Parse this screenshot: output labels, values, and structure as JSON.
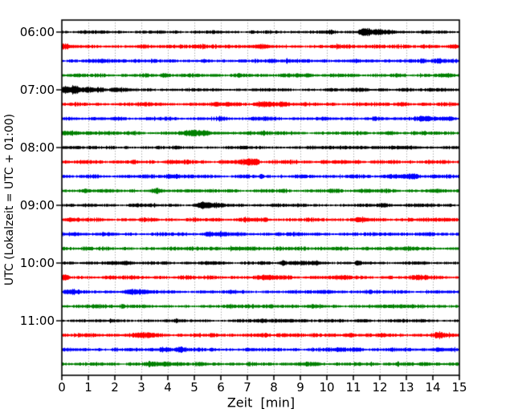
{
  "chart_data": {
    "type": "line",
    "subtype": "helicorder-seismogram-dayplot",
    "title": "",
    "xlabel": "Zeit  [min]",
    "ylabel": "UTC (Lokalzeit = UTC + 01:00)",
    "xlim": [
      0,
      15
    ],
    "x_ticks": [
      0,
      1,
      2,
      3,
      4,
      5,
      6,
      7,
      8,
      9,
      10,
      11,
      12,
      13,
      14,
      15
    ],
    "y_tick_labels": [
      "06:00",
      "07:00",
      "08:00",
      "09:00",
      "10:00",
      "11:00"
    ],
    "traces_per_hour": 4,
    "minutes_per_trace": 15,
    "grid": {
      "vertical_dotted": true,
      "horizontal": false,
      "color": "#8c8c8c"
    },
    "colors_cycle": [
      "#000000",
      "#ff0000",
      "#0000ff",
      "#008000"
    ],
    "axis_color": "#000000",
    "background": "#ffffff",
    "events_format": "[minute_x, gauss_width_min, extra_halfheight_px]",
    "traces": [
      {
        "start": "06:00",
        "color": "#000000",
        "base": 1.55,
        "events": [
          [
            0.9,
            0.25,
            1.0
          ],
          [
            10.1,
            0.3,
            1.0
          ],
          [
            11.35,
            0.18,
            3.2
          ],
          [
            11.55,
            0.12,
            2.2
          ],
          [
            11.9,
            0.25,
            2.6
          ],
          [
            12.4,
            0.3,
            1.2
          ]
        ]
      },
      {
        "start": "06:15",
        "color": "#ff0000",
        "base": 1.85,
        "events": [
          [
            0.15,
            0.2,
            1.4
          ],
          [
            3.0,
            0.3,
            0.8
          ],
          [
            7.6,
            0.45,
            1.3
          ],
          [
            10.3,
            0.4,
            0.8
          ],
          [
            14.75,
            0.2,
            1.4
          ]
        ]
      },
      {
        "start": "06:30",
        "color": "#0000ff",
        "base": 1.75,
        "events": [
          [
            1.4,
            0.3,
            0.9
          ],
          [
            5.4,
            0.3,
            0.8
          ],
          [
            11.2,
            0.5,
            0.8
          ],
          [
            14.3,
            0.3,
            0.9
          ]
        ]
      },
      {
        "start": "06:45",
        "color": "#008000",
        "base": 1.75,
        "events": [
          [
            0.4,
            0.3,
            0.8
          ],
          [
            3.85,
            0.12,
            1.8
          ],
          [
            9.2,
            0.5,
            0.8
          ],
          [
            14.5,
            0.3,
            1.0
          ]
        ]
      },
      {
        "start": "07:00",
        "color": "#000000",
        "base": 1.55,
        "events": [
          [
            0.12,
            0.15,
            4.2
          ],
          [
            0.5,
            0.2,
            3.8
          ],
          [
            0.95,
            0.25,
            3.2
          ],
          [
            1.45,
            0.18,
            2.2
          ],
          [
            2.1,
            0.3,
            1.2
          ],
          [
            11.3,
            0.4,
            1.3
          ],
          [
            14.3,
            0.35,
            1.3
          ]
        ]
      },
      {
        "start": "07:15",
        "color": "#ff0000",
        "base": 1.85,
        "events": [
          [
            6.3,
            0.3,
            1.2
          ],
          [
            7.5,
            0.25,
            2.2
          ],
          [
            7.9,
            0.2,
            2.3
          ],
          [
            8.3,
            0.15,
            1.5
          ],
          [
            12.9,
            0.2,
            1.0
          ]
        ]
      },
      {
        "start": "07:30",
        "color": "#0000ff",
        "base": 1.75,
        "events": [
          [
            7.5,
            0.4,
            0.9
          ],
          [
            13.7,
            0.5,
            1.3
          ],
          [
            14.6,
            0.25,
            1.4
          ]
        ]
      },
      {
        "start": "07:45",
        "color": "#008000",
        "base": 1.75,
        "events": [
          [
            0.25,
            0.35,
            1.8
          ],
          [
            1.0,
            0.2,
            1.2
          ],
          [
            4.85,
            0.4,
            1.8
          ],
          [
            5.45,
            0.25,
            1.6
          ],
          [
            7.0,
            0.3,
            0.9
          ],
          [
            12.4,
            0.25,
            1.0
          ]
        ]
      },
      {
        "start": "08:00",
        "color": "#000000",
        "base": 1.55,
        "events": [
          [
            0.3,
            0.3,
            0.8
          ],
          [
            10.9,
            0.7,
            0.9
          ],
          [
            13.1,
            0.5,
            0.8
          ]
        ]
      },
      {
        "start": "08:15",
        "color": "#ff0000",
        "base": 1.85,
        "events": [
          [
            4.2,
            0.35,
            1.1
          ],
          [
            7.05,
            0.22,
            3.8
          ],
          [
            7.35,
            0.12,
            2.0
          ],
          [
            11.15,
            0.1,
            1.4
          ]
        ]
      },
      {
        "start": "08:30",
        "color": "#0000ff",
        "base": 1.75,
        "events": [
          [
            4.05,
            0.18,
            2.3
          ],
          [
            4.35,
            0.1,
            1.5
          ],
          [
            7.55,
            0.06,
            2.8
          ],
          [
            12.45,
            0.35,
            1.3
          ],
          [
            13.15,
            0.25,
            1.8
          ],
          [
            14.05,
            0.18,
            1.4
          ]
        ]
      },
      {
        "start": "08:45",
        "color": "#008000",
        "base": 1.75,
        "events": [
          [
            0.9,
            0.2,
            1.1
          ],
          [
            3.55,
            0.18,
            2.0
          ],
          [
            5.0,
            0.3,
            0.8
          ],
          [
            11.4,
            0.5,
            0.9
          ]
        ]
      },
      {
        "start": "09:00",
        "color": "#000000",
        "base": 1.55,
        "events": [
          [
            2.9,
            0.3,
            1.1
          ],
          [
            5.3,
            0.18,
            4.3
          ],
          [
            5.6,
            0.15,
            2.6
          ],
          [
            5.95,
            0.2,
            1.6
          ],
          [
            8.0,
            0.2,
            1.3
          ],
          [
            12.1,
            0.22,
            1.4
          ],
          [
            13.4,
            0.3,
            0.9
          ]
        ]
      },
      {
        "start": "09:15",
        "color": "#ff0000",
        "base": 1.85,
        "events": [
          [
            0.3,
            0.3,
            1.2
          ],
          [
            7.1,
            0.4,
            0.9
          ],
          [
            11.2,
            0.3,
            0.8
          ],
          [
            14.45,
            0.25,
            1.2
          ]
        ]
      },
      {
        "start": "09:30",
        "color": "#0000ff",
        "base": 1.75,
        "events": [
          [
            0.35,
            0.3,
            1.3
          ],
          [
            5.55,
            0.2,
            1.9
          ],
          [
            6.05,
            0.18,
            1.9
          ],
          [
            8.2,
            0.12,
            1.5
          ],
          [
            12.35,
            0.25,
            1.1
          ]
        ]
      },
      {
        "start": "09:45",
        "color": "#008000",
        "base": 1.75,
        "events": [
          [
            6.55,
            0.3,
            1.4
          ],
          [
            7.1,
            0.25,
            1.4
          ],
          [
            10.4,
            0.3,
            1.1
          ],
          [
            13.3,
            0.3,
            0.9
          ]
        ]
      },
      {
        "start": "10:00",
        "color": "#000000",
        "base": 1.55,
        "events": [
          [
            2.3,
            0.4,
            1.6
          ],
          [
            5.8,
            0.3,
            0.9
          ],
          [
            8.35,
            0.1,
            2.3
          ],
          [
            8.8,
            0.4,
            1.4
          ],
          [
            9.6,
            0.3,
            1.0
          ],
          [
            11.15,
            0.1,
            2.0
          ]
        ]
      },
      {
        "start": "10:15",
        "color": "#ff0000",
        "base": 1.85,
        "events": [
          [
            0.12,
            0.2,
            1.9
          ],
          [
            7.9,
            0.5,
            1.2
          ],
          [
            10.6,
            0.3,
            0.9
          ],
          [
            13.6,
            0.4,
            1.1
          ]
        ]
      },
      {
        "start": "10:30",
        "color": "#0000ff",
        "base": 1.75,
        "events": [
          [
            0.4,
            0.3,
            1.2
          ],
          [
            2.55,
            0.25,
            2.3
          ],
          [
            3.0,
            0.2,
            1.2
          ],
          [
            9.9,
            0.4,
            0.9
          ]
        ]
      },
      {
        "start": "10:45",
        "color": "#008000",
        "base": 1.75,
        "events": [
          [
            1.2,
            0.3,
            0.9
          ],
          [
            6.4,
            0.3,
            0.7
          ],
          [
            9.6,
            0.35,
            1.1
          ]
        ]
      },
      {
        "start": "11:00",
        "color": "#000000",
        "base": 1.55,
        "events": [
          [
            7.5,
            0.3,
            1.1
          ],
          [
            8.5,
            0.45,
            1.4
          ],
          [
            11.3,
            0.3,
            0.9
          ],
          [
            13.6,
            0.3,
            0.8
          ]
        ]
      },
      {
        "start": "11:15",
        "color": "#ff0000",
        "base": 1.85,
        "events": [
          [
            2.9,
            0.3,
            1.8
          ],
          [
            3.45,
            0.2,
            1.4
          ],
          [
            8.6,
            0.4,
            1.0
          ],
          [
            10.9,
            0.3,
            1.2
          ],
          [
            14.25,
            0.18,
            2.6
          ]
        ]
      },
      {
        "start": "11:30",
        "color": "#0000ff",
        "base": 1.75,
        "events": [
          [
            3.85,
            0.4,
            1.7
          ],
          [
            4.5,
            0.25,
            1.6
          ],
          [
            10.45,
            0.25,
            1.2
          ],
          [
            11.05,
            0.25,
            1.6
          ],
          [
            14.2,
            0.3,
            0.9
          ]
        ]
      },
      {
        "start": "11:45",
        "color": "#008000",
        "base": 1.75,
        "events": [
          [
            3.45,
            0.25,
            1.9
          ],
          [
            3.95,
            0.2,
            1.8
          ],
          [
            4.35,
            0.15,
            1.3
          ],
          [
            9.4,
            0.3,
            0.9
          ],
          [
            12.65,
            0.08,
            2.2
          ],
          [
            13.9,
            0.25,
            0.9
          ]
        ]
      }
    ]
  }
}
